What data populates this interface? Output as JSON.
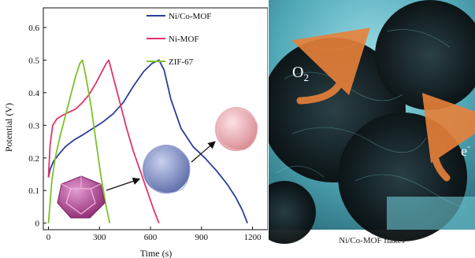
{
  "chart_data": {
    "type": "line",
    "xlabel": "Time (s)",
    "ylabel": "Potential (V)",
    "xlim": [
      -30,
      1290
    ],
    "ylim": [
      -0.02,
      0.66
    ],
    "xticks": [
      0,
      300,
      600,
      900,
      1200
    ],
    "yticks": [
      0,
      0.1,
      0.2,
      0.3,
      0.4,
      0.5,
      0.6
    ],
    "legend_position": "top-right",
    "series": [
      {
        "name": "Ni/Co-MOF",
        "color": "#2a3d9a",
        "x": [
          0,
          10,
          30,
          60,
          100,
          150,
          200,
          260,
          320,
          380,
          440,
          500,
          560,
          610,
          650,
          680,
          720,
          780,
          850,
          920,
          990,
          1050,
          1100,
          1140,
          1170
        ],
        "y": [
          0.14,
          0.165,
          0.19,
          0.21,
          0.235,
          0.255,
          0.27,
          0.29,
          0.31,
          0.335,
          0.37,
          0.42,
          0.465,
          0.49,
          0.5,
          0.47,
          0.38,
          0.29,
          0.235,
          0.2,
          0.16,
          0.12,
          0.08,
          0.04,
          0.0
        ]
      },
      {
        "name": "Ni-MOF",
        "color": "#e0336e",
        "x": [
          0,
          10,
          25,
          50,
          80,
          120,
          160,
          200,
          240,
          280,
          310,
          340,
          355,
          380,
          420,
          460,
          500,
          540,
          580,
          620,
          650
        ],
        "y": [
          0.14,
          0.24,
          0.3,
          0.32,
          0.33,
          0.34,
          0.35,
          0.37,
          0.395,
          0.43,
          0.46,
          0.49,
          0.5,
          0.45,
          0.37,
          0.29,
          0.22,
          0.16,
          0.1,
          0.04,
          0.0
        ]
      },
      {
        "name": "ZIF-67",
        "color": "#7cc12b",
        "x": [
          0,
          20,
          40,
          70,
          100,
          130,
          160,
          185,
          200,
          220,
          250,
          280,
          310,
          340,
          360
        ],
        "y": [
          0.0,
          0.13,
          0.2,
          0.27,
          0.33,
          0.39,
          0.45,
          0.49,
          0.5,
          0.45,
          0.36,
          0.25,
          0.14,
          0.05,
          0.0
        ]
      }
    ]
  },
  "inset": {
    "arrow_color": "#111111",
    "particle_colors": [
      "#b2418f",
      "#7f8fc8",
      "#e6a9b1"
    ]
  },
  "photo": {
    "caption": "Ni/Co-MOF flakes",
    "label_o2_base": "O",
    "label_o2_sub": "2",
    "label_e_base": "e",
    "label_e_sup": "-",
    "arrow_color": "#e8813a",
    "tint_color": "#5ab8c8"
  }
}
